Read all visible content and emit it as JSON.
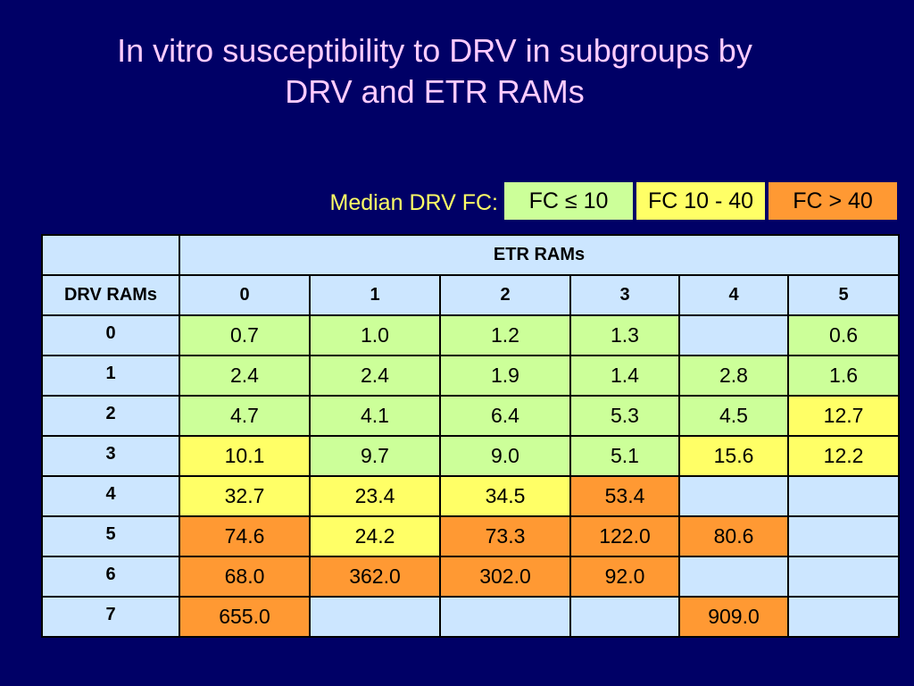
{
  "title": {
    "line1": "In vitro susceptibility to DRV in subgroups by",
    "line2": "DRV and ETR RAMs"
  },
  "legend": {
    "label": "Median DRV FC:",
    "green": "FC ≤ 10",
    "yellow": "FC 10 - 40",
    "orange": "FC > 40"
  },
  "colors": {
    "background": "#000066",
    "title": "#ffccff",
    "legend_label": "#ffff66",
    "fc_le_10": "#ccff99",
    "fc_10_40": "#ffff66",
    "fc_gt_40": "#ff9933",
    "header": "#cce6ff"
  },
  "table": {
    "group_header": "ETR RAMs",
    "row_header_label": "DRV RAMs",
    "columns": [
      "0",
      "1",
      "2",
      "3",
      "4",
      "5"
    ],
    "rows": [
      {
        "label": "0",
        "cells": [
          {
            "value": "0.7",
            "color": "green"
          },
          {
            "value": "1.0",
            "color": "green"
          },
          {
            "value": "1.2",
            "color": "green"
          },
          {
            "value": "1.3",
            "color": "green"
          },
          {
            "value": "",
            "color": "empty"
          },
          {
            "value": "0.6",
            "color": "green"
          }
        ]
      },
      {
        "label": "1",
        "cells": [
          {
            "value": "2.4",
            "color": "green"
          },
          {
            "value": "2.4",
            "color": "green"
          },
          {
            "value": "1.9",
            "color": "green"
          },
          {
            "value": "1.4",
            "color": "green"
          },
          {
            "value": "2.8",
            "color": "green"
          },
          {
            "value": "1.6",
            "color": "green"
          }
        ]
      },
      {
        "label": "2",
        "cells": [
          {
            "value": "4.7",
            "color": "green"
          },
          {
            "value": "4.1",
            "color": "green"
          },
          {
            "value": "6.4",
            "color": "green"
          },
          {
            "value": "5.3",
            "color": "green"
          },
          {
            "value": "4.5",
            "color": "green"
          },
          {
            "value": "12.7",
            "color": "yellow"
          }
        ]
      },
      {
        "label": "3",
        "cells": [
          {
            "value": "10.1",
            "color": "yellow"
          },
          {
            "value": "9.7",
            "color": "green"
          },
          {
            "value": "9.0",
            "color": "green"
          },
          {
            "value": "5.1",
            "color": "green"
          },
          {
            "value": "15.6",
            "color": "yellow"
          },
          {
            "value": "12.2",
            "color": "yellow"
          }
        ]
      },
      {
        "label": "4",
        "cells": [
          {
            "value": "32.7",
            "color": "yellow"
          },
          {
            "value": "23.4",
            "color": "yellow"
          },
          {
            "value": "34.5",
            "color": "yellow"
          },
          {
            "value": "53.4",
            "color": "orange"
          },
          {
            "value": "",
            "color": "empty"
          },
          {
            "value": "",
            "color": "empty"
          }
        ]
      },
      {
        "label": "5",
        "cells": [
          {
            "value": "74.6",
            "color": "orange"
          },
          {
            "value": "24.2",
            "color": "yellow"
          },
          {
            "value": "73.3",
            "color": "orange"
          },
          {
            "value": "122.0",
            "color": "orange"
          },
          {
            "value": "80.6",
            "color": "orange"
          },
          {
            "value": "",
            "color": "empty"
          }
        ]
      },
      {
        "label": "6",
        "cells": [
          {
            "value": "68.0",
            "color": "orange"
          },
          {
            "value": "362.0",
            "color": "orange"
          },
          {
            "value": "302.0",
            "color": "orange"
          },
          {
            "value": "92.0",
            "color": "orange"
          },
          {
            "value": "",
            "color": "empty"
          },
          {
            "value": "",
            "color": "empty"
          }
        ]
      },
      {
        "label": "7",
        "cells": [
          {
            "value": "655.0",
            "color": "orange"
          },
          {
            "value": "",
            "color": "empty"
          },
          {
            "value": "",
            "color": "empty"
          },
          {
            "value": "",
            "color": "empty"
          },
          {
            "value": "909.0",
            "color": "orange"
          },
          {
            "value": "",
            "color": "empty"
          }
        ]
      }
    ]
  }
}
